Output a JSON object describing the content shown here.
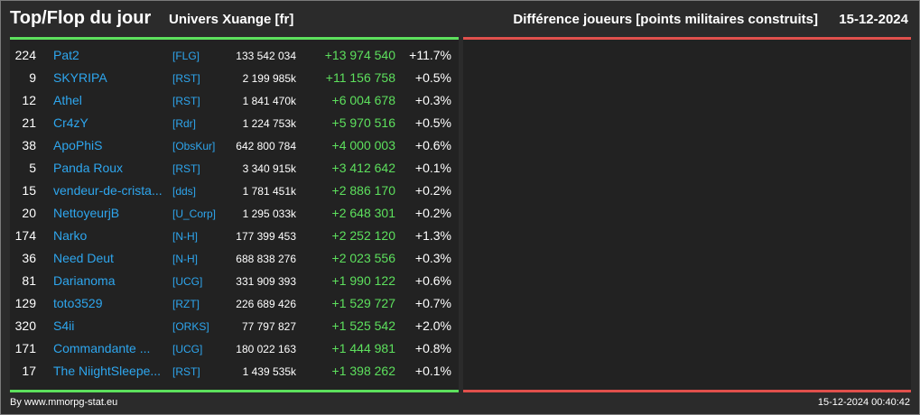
{
  "header": {
    "title": "Top/Flop du jour",
    "universe": "Univers Xuange [fr]",
    "subtitle": "Différence joueurs [points militaires construits]",
    "date": "15-12-2024"
  },
  "colors": {
    "top_accent": "#5de05d",
    "flop_accent": "#e0504c",
    "link": "#2ea6ee",
    "positive": "#5de05d"
  },
  "top_rows": [
    {
      "rank": "224",
      "name": "Pat2",
      "tag": "[FLG]",
      "points": "133 542 034",
      "diff": "+13 974 540",
      "pct": "+11.7%"
    },
    {
      "rank": "9",
      "name": "SKYRIPA",
      "tag": "[RST]",
      "points": "2 199 985k",
      "diff": "+11 156 758",
      "pct": "+0.5%"
    },
    {
      "rank": "12",
      "name": "Athel",
      "tag": "[RST]",
      "points": "1 841 470k",
      "diff": "+6 004 678",
      "pct": "+0.3%"
    },
    {
      "rank": "21",
      "name": "Cr4zY",
      "tag": "[Rdr]",
      "points": "1 224 753k",
      "diff": "+5 970 516",
      "pct": "+0.5%"
    },
    {
      "rank": "38",
      "name": "ApoPhiS",
      "tag": "[ObsKur]",
      "points": "642 800 784",
      "diff": "+4 000 003",
      "pct": "+0.6%"
    },
    {
      "rank": "5",
      "name": "Panda Roux",
      "tag": "[RST]",
      "points": "3 340 915k",
      "diff": "+3 412 642",
      "pct": "+0.1%"
    },
    {
      "rank": "15",
      "name": "vendeur-de-crista...",
      "tag": "[dds]",
      "points": "1 781 451k",
      "diff": "+2 886 170",
      "pct": "+0.2%"
    },
    {
      "rank": "20",
      "name": "NettoyeurjB",
      "tag": "[U_Corp]",
      "points": "1 295 033k",
      "diff": "+2 648 301",
      "pct": "+0.2%"
    },
    {
      "rank": "174",
      "name": "Narko",
      "tag": "[N-H]",
      "points": "177 399 453",
      "diff": "+2 252 120",
      "pct": "+1.3%"
    },
    {
      "rank": "36",
      "name": "Need Deut",
      "tag": "[N-H]",
      "points": "688 838 276",
      "diff": "+2 023 556",
      "pct": "+0.3%"
    },
    {
      "rank": "81",
      "name": "Darianoma",
      "tag": "[UCG]",
      "points": "331 909 393",
      "diff": "+1 990 122",
      "pct": "+0.6%"
    },
    {
      "rank": "129",
      "name": "toto3529",
      "tag": "[RZT]",
      "points": "226 689 426",
      "diff": "+1 529 727",
      "pct": "+0.7%"
    },
    {
      "rank": "320",
      "name": "S4ii",
      "tag": "[ORKS]",
      "points": "77 797 827",
      "diff": "+1 525 542",
      "pct": "+2.0%"
    },
    {
      "rank": "171",
      "name": "Commandante ...",
      "tag": "[UCG]",
      "points": "180 022 163",
      "diff": "+1 444 981",
      "pct": "+0.8%"
    },
    {
      "rank": "17",
      "name": "The NiightSleepe...",
      "tag": "[RST]",
      "points": "1 439 535k",
      "diff": "+1 398 262",
      "pct": "+0.1%"
    }
  ],
  "flop_rows": [],
  "footer": {
    "credit": "By www.mmorpg-stat.eu",
    "timestamp": "15-12-2024 00:40:42"
  }
}
